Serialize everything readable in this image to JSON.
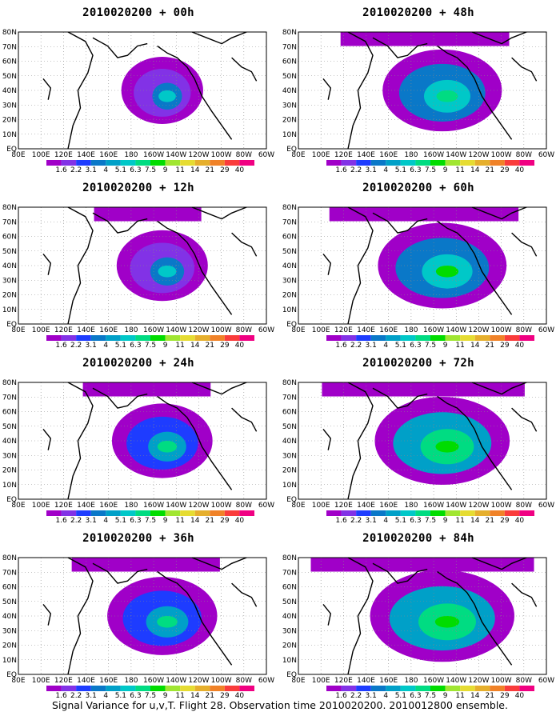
{
  "panels": [
    {
      "title": "2010020200 + 00h",
      "level": 0.0
    },
    {
      "title": "2010020200 + 12h",
      "level": 0.15
    },
    {
      "title": "2010020200 + 24h",
      "level": 0.3
    },
    {
      "title": "2010020200 + 36h",
      "level": 0.45
    },
    {
      "title": "2010020200 + 48h",
      "level": 0.6
    },
    {
      "title": "2010020200 + 60h",
      "level": 0.75
    },
    {
      "title": "2010020200 + 72h",
      "level": 0.85
    },
    {
      "title": "2010020200 + 84h",
      "level": 1.0
    }
  ],
  "lat_labels": [
    "80N",
    "70N",
    "60N",
    "50N",
    "40N",
    "30N",
    "20N",
    "10N",
    "EQ"
  ],
  "lon_labels": [
    "80E",
    "100E",
    "120E",
    "140E",
    "160E",
    "180",
    "160W",
    "140W",
    "120W",
    "100W",
    "80W",
    "60W"
  ],
  "colorbar": {
    "labels": [
      "1.6",
      "2.2",
      "3.1",
      "4",
      "5.1",
      "6.3",
      "7.5",
      "9",
      "11",
      "14",
      "21",
      "29",
      "40"
    ],
    "colors": [
      "#a000c8",
      "#8232e6",
      "#1e3cff",
      "#0a78c8",
      "#00a0c8",
      "#00c8c8",
      "#00dc82",
      "#00dc00",
      "#a0e632",
      "#e6dc32",
      "#e6af2d",
      "#f08228",
      "#fa3c3c",
      "#f00082"
    ]
  },
  "caption": "Signal Variance for u,v,T. Flight 28. Observation time 2010020200. 2010012800 ensemble."
}
